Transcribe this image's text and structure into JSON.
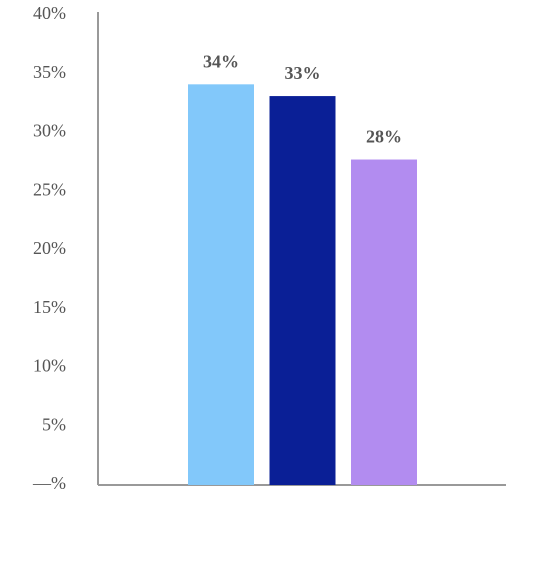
{
  "chart_data": {
    "type": "bar",
    "categories": [
      null,
      null,
      null
    ],
    "values": [
      34.1,
      33.1,
      27.7
    ],
    "value_labels": [
      "34%",
      "33%",
      "28%"
    ],
    "colors": [
      "#82c8fa",
      "#0a1f96",
      "#b28cf0"
    ],
    "ylim": [
      0,
      40
    ],
    "yticks": [
      {
        "value": 0,
        "label": "—%"
      },
      {
        "value": 5,
        "label": "5%"
      },
      {
        "value": 10,
        "label": "10%"
      },
      {
        "value": 15,
        "label": "15%"
      },
      {
        "value": 20,
        "label": "20%"
      },
      {
        "value": 25,
        "label": "25%"
      },
      {
        "value": 30,
        "label": "30%"
      },
      {
        "value": 35,
        "label": "35%"
      },
      {
        "value": 40,
        "label": "40%"
      }
    ]
  }
}
